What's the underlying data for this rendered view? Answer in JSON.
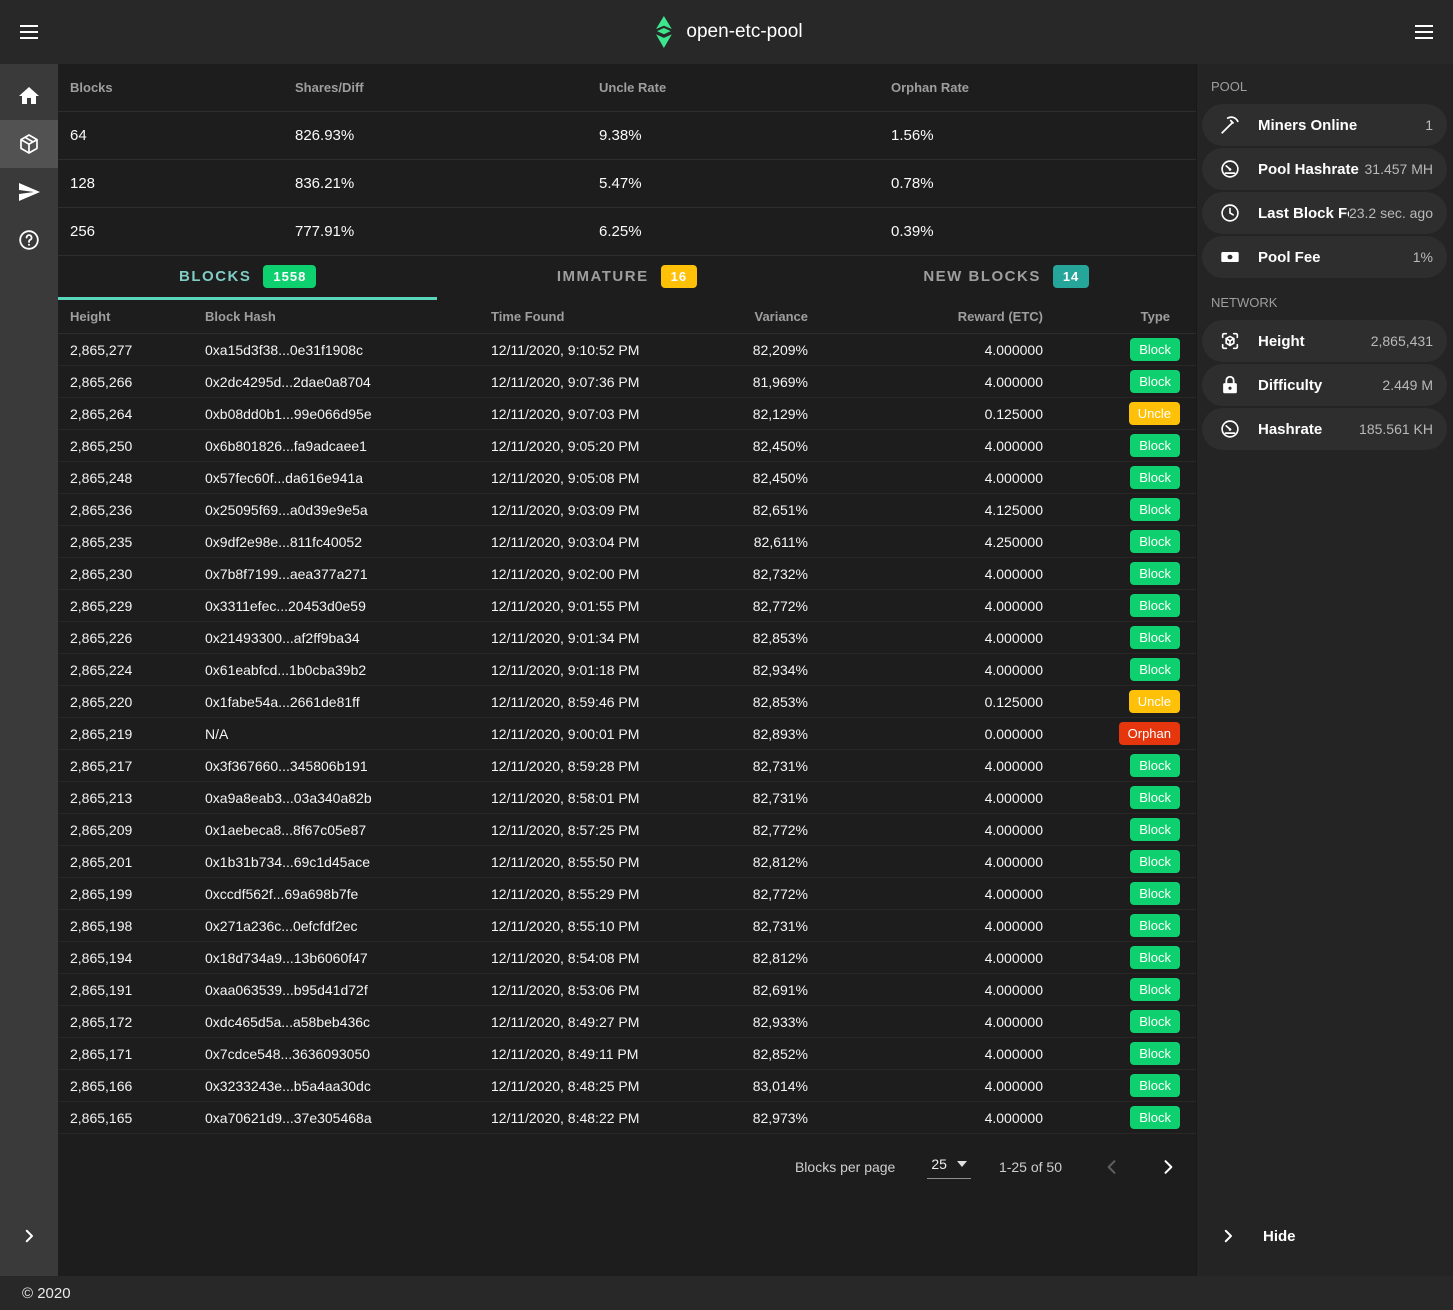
{
  "colors": {
    "accent_green": "#0ed06e",
    "accent_amber": "#ffc107",
    "accent_teal": "#26a69a",
    "accent_red": "#e5360e",
    "tab_active": "#80cbc4",
    "tab_underline": "#59d6bc",
    "logo_green": "#3de58c"
  },
  "topbar": {
    "title": "open-etc-pool"
  },
  "left_rail": {
    "items": [
      {
        "name": "home",
        "icon": "home",
        "active": false
      },
      {
        "name": "blocks",
        "icon": "cube",
        "active": true
      },
      {
        "name": "payments",
        "icon": "send",
        "active": false
      },
      {
        "name": "help",
        "icon": "help",
        "active": false
      }
    ]
  },
  "stats_table": {
    "columns": [
      "Blocks",
      "Shares/Diff",
      "Uncle Rate",
      "Orphan Rate"
    ],
    "rows": [
      [
        "64",
        "826.93%",
        "9.38%",
        "1.56%"
      ],
      [
        "128",
        "836.21%",
        "5.47%",
        "0.78%"
      ],
      [
        "256",
        "777.91%",
        "6.25%",
        "0.39%"
      ]
    ]
  },
  "tabs": [
    {
      "label": "BLOCKS",
      "count": "1558",
      "badge": "green",
      "active": true
    },
    {
      "label": "IMMATURE",
      "count": "16",
      "badge": "amber",
      "active": false
    },
    {
      "label": "NEW BLOCKS",
      "count": "14",
      "badge": "teal",
      "active": false
    }
  ],
  "blocks_table": {
    "columns": [
      "Height",
      "Block Hash",
      "Time Found",
      "Variance",
      "Reward (ETC)",
      "Type"
    ],
    "rows": [
      {
        "height": "2,865,277",
        "hash": "0xa15d3f38...0e31f1908c",
        "time": "12/11/2020, 9:10:52 PM",
        "variance": "82,209%",
        "reward": "4.000000",
        "type": "Block"
      },
      {
        "height": "2,865,266",
        "hash": "0x2dc4295d...2dae0a8704",
        "time": "12/11/2020, 9:07:36 PM",
        "variance": "81,969%",
        "reward": "4.000000",
        "type": "Block"
      },
      {
        "height": "2,865,264",
        "hash": "0xb08dd0b1...99e066d95e",
        "time": "12/11/2020, 9:07:03 PM",
        "variance": "82,129%",
        "reward": "0.125000",
        "type": "Uncle"
      },
      {
        "height": "2,865,250",
        "hash": "0x6b801826...fa9adcaee1",
        "time": "12/11/2020, 9:05:20 PM",
        "variance": "82,450%",
        "reward": "4.000000",
        "type": "Block"
      },
      {
        "height": "2,865,248",
        "hash": "0x57fec60f...da616e941a",
        "time": "12/11/2020, 9:05:08 PM",
        "variance": "82,450%",
        "reward": "4.000000",
        "type": "Block"
      },
      {
        "height": "2,865,236",
        "hash": "0x25095f69...a0d39e9e5a",
        "time": "12/11/2020, 9:03:09 PM",
        "variance": "82,651%",
        "reward": "4.125000",
        "type": "Block"
      },
      {
        "height": "2,865,235",
        "hash": "0x9df2e98e...811fc40052",
        "time": "12/11/2020, 9:03:04 PM",
        "variance": "82,611%",
        "reward": "4.250000",
        "type": "Block"
      },
      {
        "height": "2,865,230",
        "hash": "0x7b8f7199...aea377a271",
        "time": "12/11/2020, 9:02:00 PM",
        "variance": "82,732%",
        "reward": "4.000000",
        "type": "Block"
      },
      {
        "height": "2,865,229",
        "hash": "0x3311efec...20453d0e59",
        "time": "12/11/2020, 9:01:55 PM",
        "variance": "82,772%",
        "reward": "4.000000",
        "type": "Block"
      },
      {
        "height": "2,865,226",
        "hash": "0x21493300...af2ff9ba34",
        "time": "12/11/2020, 9:01:34 PM",
        "variance": "82,853%",
        "reward": "4.000000",
        "type": "Block"
      },
      {
        "height": "2,865,224",
        "hash": "0x61eabfcd...1b0cba39b2",
        "time": "12/11/2020, 9:01:18 PM",
        "variance": "82,934%",
        "reward": "4.000000",
        "type": "Block"
      },
      {
        "height": "2,865,220",
        "hash": "0x1fabe54a...2661de81ff",
        "time": "12/11/2020, 8:59:46 PM",
        "variance": "82,853%",
        "reward": "0.125000",
        "type": "Uncle"
      },
      {
        "height": "2,865,219",
        "hash": "N/A",
        "time": "12/11/2020, 9:00:01 PM",
        "variance": "82,893%",
        "reward": "0.000000",
        "type": "Orphan"
      },
      {
        "height": "2,865,217",
        "hash": "0x3f367660...345806b191",
        "time": "12/11/2020, 8:59:28 PM",
        "variance": "82,731%",
        "reward": "4.000000",
        "type": "Block"
      },
      {
        "height": "2,865,213",
        "hash": "0xa9a8eab3...03a340a82b",
        "time": "12/11/2020, 8:58:01 PM",
        "variance": "82,731%",
        "reward": "4.000000",
        "type": "Block"
      },
      {
        "height": "2,865,209",
        "hash": "0x1aebeca8...8f67c05e87",
        "time": "12/11/2020, 8:57:25 PM",
        "variance": "82,772%",
        "reward": "4.000000",
        "type": "Block"
      },
      {
        "height": "2,865,201",
        "hash": "0x1b31b734...69c1d45ace",
        "time": "12/11/2020, 8:55:50 PM",
        "variance": "82,812%",
        "reward": "4.000000",
        "type": "Block"
      },
      {
        "height": "2,865,199",
        "hash": "0xccdf562f...69a698b7fe",
        "time": "12/11/2020, 8:55:29 PM",
        "variance": "82,772%",
        "reward": "4.000000",
        "type": "Block"
      },
      {
        "height": "2,865,198",
        "hash": "0x271a236c...0efcfdf2ec",
        "time": "12/11/2020, 8:55:10 PM",
        "variance": "82,731%",
        "reward": "4.000000",
        "type": "Block"
      },
      {
        "height": "2,865,194",
        "hash": "0x18d734a9...13b6060f47",
        "time": "12/11/2020, 8:54:08 PM",
        "variance": "82,812%",
        "reward": "4.000000",
        "type": "Block"
      },
      {
        "height": "2,865,191",
        "hash": "0xaa063539...b95d41d72f",
        "time": "12/11/2020, 8:53:06 PM",
        "variance": "82,691%",
        "reward": "4.000000",
        "type": "Block"
      },
      {
        "height": "2,865,172",
        "hash": "0xdc465d5a...a58beb436c",
        "time": "12/11/2020, 8:49:27 PM",
        "variance": "82,933%",
        "reward": "4.000000",
        "type": "Block"
      },
      {
        "height": "2,865,171",
        "hash": "0x7cdce548...3636093050",
        "time": "12/11/2020, 8:49:11 PM",
        "variance": "82,852%",
        "reward": "4.000000",
        "type": "Block"
      },
      {
        "height": "2,865,166",
        "hash": "0x3233243e...b5a4aa30dc",
        "time": "12/11/2020, 8:48:25 PM",
        "variance": "83,014%",
        "reward": "4.000000",
        "type": "Block"
      },
      {
        "height": "2,865,165",
        "hash": "0xa70621d9...37e305468a",
        "time": "12/11/2020, 8:48:22 PM",
        "variance": "82,973%",
        "reward": "4.000000",
        "type": "Block"
      }
    ]
  },
  "pagination": {
    "per_page_label": "Blocks per page",
    "per_page_value": "25",
    "range": "1-25 of 50"
  },
  "sidebar": {
    "sections": [
      {
        "title": "POOL",
        "items": [
          {
            "icon": "pickaxe",
            "label": "Miners Online",
            "value": "1"
          },
          {
            "icon": "gauge",
            "label": "Pool Hashrate",
            "value": "31.457 MH"
          },
          {
            "icon": "clock",
            "label": "Last Block Fo…",
            "value": "23.2 sec. ago"
          },
          {
            "icon": "banknote",
            "label": "Pool Fee",
            "value": "1%"
          }
        ]
      },
      {
        "title": "NETWORK",
        "items": [
          {
            "icon": "cube-scan",
            "label": "Height",
            "value": "2,865,431"
          },
          {
            "icon": "lock",
            "label": "Difficulty",
            "value": "2.449 M"
          },
          {
            "icon": "gauge",
            "label": "Hashrate",
            "value": "185.561 KH"
          }
        ]
      }
    ],
    "hide_label": "Hide"
  },
  "footer": {
    "copyright": "© 2020"
  }
}
